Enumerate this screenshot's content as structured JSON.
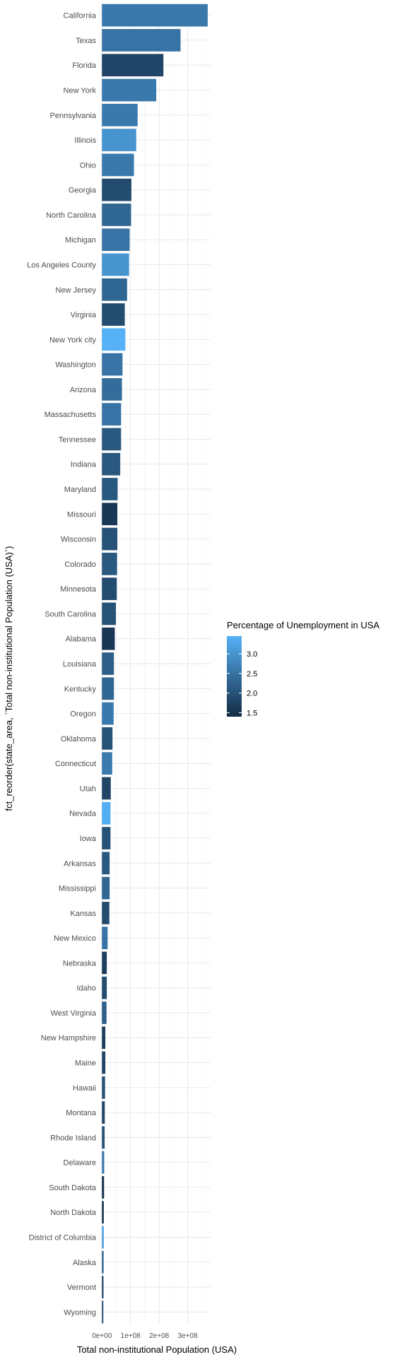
{
  "chart_data": {
    "type": "bar",
    "orientation": "horizontal",
    "title": "",
    "xlabel": "Total non-institutional Population (USA)",
    "ylabel": "fct_reorder(state_area, `Total non-institutional Population (USA)`)",
    "x_ticks": [
      {
        "value": 0,
        "label": "0e+00"
      },
      {
        "value": 100000000,
        "label": "1e+08"
      },
      {
        "value": 200000000,
        "label": "2e+08"
      },
      {
        "value": 300000000,
        "label": "3e+08"
      }
    ],
    "xlim": [
      -8000000,
      380000000
    ],
    "grid": true,
    "legend": {
      "title": "Percentage of Unemployment in USA",
      "position": "right",
      "range": [
        1.4,
        3.45
      ],
      "ticks": [
        1.5,
        2.0,
        2.5,
        3.0
      ],
      "tick_labels": [
        "1.5",
        "2.0",
        "2.5",
        "3.0"
      ],
      "color_low": "#132b43",
      "color_high": "#56b1f7"
    },
    "categories": [
      "California",
      "Texas",
      "Florida",
      "New York",
      "Pennsylvania",
      "Illinois",
      "Ohio",
      "Georgia",
      "North Carolina",
      "Michigan",
      "Los Angeles County",
      "New Jersey",
      "Virginia",
      "New York city",
      "Washington",
      "Arizona",
      "Massachusetts",
      "Tennessee",
      "Indiana",
      "Maryland",
      "Missouri",
      "Wisconsin",
      "Colorado",
      "Minnesota",
      "South Carolina",
      "Alabama",
      "Louisiana",
      "Kentucky",
      "Oregon",
      "Oklahoma",
      "Connecticut",
      "Utah",
      "Nevada",
      "Iowa",
      "Arkansas",
      "Mississippi",
      "Kansas",
      "New Mexico",
      "Nebraska",
      "Idaho",
      "West Virginia",
      "New Hampshire",
      "Maine",
      "Hawaii",
      "Montana",
      "Rhode Island",
      "Delaware",
      "South Dakota",
      "North Dakota",
      "District of Columbia",
      "Alaska",
      "Vermont",
      "Wyoming"
    ],
    "series": [
      {
        "values": [
          370000000,
          275000000,
          215000000,
          190000000,
          125000000,
          120000000,
          112000000,
          103000000,
          102000000,
          97000000,
          95000000,
          88000000,
          80000000,
          82000000,
          72000000,
          70000000,
          67000000,
          67000000,
          64000000,
          55000000,
          54000000,
          54000000,
          53000000,
          52000000,
          49000000,
          45000000,
          42000000,
          42000000,
          41000000,
          37000000,
          36000000,
          31000000,
          30000000,
          30000000,
          27000000,
          27000000,
          26000000,
          20000000,
          17000000,
          17000000,
          16000000,
          12000000,
          12000000,
          11000000,
          10000000,
          9500000,
          8000000,
          7500000,
          6500000,
          6500000,
          6000000,
          5500000,
          5000000
        ],
        "unemployment": [
          2.6,
          2.5,
          1.8,
          2.6,
          2.6,
          3.0,
          2.6,
          1.9,
          2.3,
          2.5,
          3.0,
          2.3,
          1.9,
          3.45,
          2.5,
          2.4,
          2.5,
          2.1,
          2.1,
          2.1,
          1.6,
          2.0,
          2.1,
          1.9,
          2.0,
          1.6,
          2.2,
          2.3,
          2.6,
          2.0,
          2.6,
          1.8,
          3.4,
          2.0,
          2.1,
          2.3,
          1.9,
          2.5,
          1.7,
          1.9,
          2.2,
          1.7,
          1.8,
          2.0,
          1.8,
          2.0,
          2.6,
          1.5,
          1.5,
          3.2,
          2.3,
          1.8,
          2.0
        ]
      }
    ]
  }
}
